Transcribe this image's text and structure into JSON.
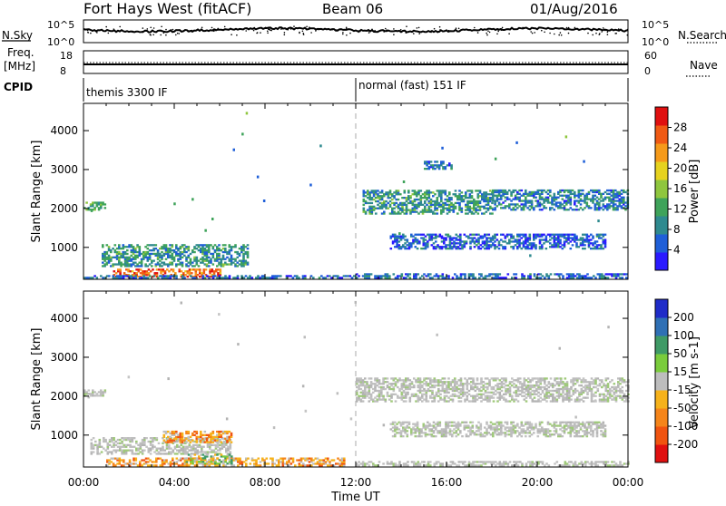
{
  "header": {
    "title": "Fort Hays West (fitACF)",
    "beam": "Beam 06",
    "date": "01/Aug/2016"
  },
  "strips": {
    "nsky_label": "N.Sky",
    "nsky_ticks": [
      "10^5",
      "10^0"
    ],
    "nsearch_label": "N.Search",
    "nsearch_ticks": [
      "10^5",
      "10^0"
    ],
    "freq_label_1": "Freq.",
    "freq_label_2": "[MHz]",
    "freq_ticks": [
      "18",
      "8"
    ],
    "nave_label": "Nave",
    "nave_ticks": [
      "60",
      "0"
    ],
    "cpid_label": "CPID",
    "cpid_segments": [
      {
        "name": "themis 3300 IF",
        "start_hour": 0
      },
      {
        "name": "normal (fast) 151 IF",
        "start_hour": 12
      }
    ]
  },
  "chart_data": [
    {
      "type": "heatmap",
      "panel": "power",
      "ylabel": "Slant Range [km]",
      "ylim": [
        180,
        4700
      ],
      "yticks": [
        1000,
        2000,
        3000,
        4000
      ],
      "xlim": [
        0,
        24
      ],
      "colorbar": {
        "label": "Power [dB]",
        "range": [
          0,
          32
        ],
        "ticks": [
          4,
          8,
          12,
          16,
          20,
          24,
          28
        ],
        "colors": [
          "#2a1aff",
          "#1f5fd8",
          "#2f8a8f",
          "#3fa35a",
          "#8fc63e",
          "#e6d21e",
          "#f59a1a",
          "#f05a14",
          "#e01010"
        ]
      },
      "features": [
        {
          "t0": 0.0,
          "t1": 0.9,
          "r0": 1950,
          "r1": 2150,
          "level": 12
        },
        {
          "t0": 1.3,
          "t1": 6.0,
          "r0": 230,
          "r1": 420,
          "level": 26
        },
        {
          "t0": 0.8,
          "t1": 7.2,
          "r0": 500,
          "r1": 1050,
          "level": 10
        },
        {
          "t0": 0.0,
          "t1": 12.0,
          "r0": 200,
          "r1": 280,
          "level": 6
        },
        {
          "t0": 12.0,
          "t1": 24.0,
          "r0": 200,
          "r1": 300,
          "level": 6
        },
        {
          "t0": 12.3,
          "t1": 18.0,
          "r0": 1850,
          "r1": 2450,
          "level": 10
        },
        {
          "t0": 18.0,
          "t1": 24.0,
          "r0": 1950,
          "r1": 2450,
          "level": 8
        },
        {
          "t0": 13.5,
          "t1": 23.0,
          "r0": 950,
          "r1": 1350,
          "level": 6
        },
        {
          "t0": 15.0,
          "t1": 16.2,
          "r0": 3000,
          "r1": 3200,
          "level": 8
        }
      ]
    },
    {
      "type": "heatmap",
      "panel": "velocity",
      "ylabel": "Slant Range [km]",
      "ylim": [
        180,
        4700
      ],
      "yticks": [
        1000,
        2000,
        3000,
        4000
      ],
      "xlim": [
        0,
        24
      ],
      "xticks": [
        "00:00",
        "04:00",
        "08:00",
        "12:00",
        "16:00",
        "20:00",
        "00:00"
      ],
      "xlabel": "Time UT",
      "colorbar": {
        "label": "Velocity [m s-1]",
        "ticks": [
          "200",
          "100",
          "50",
          "15",
          "-15",
          "-50",
          "-100",
          "-200"
        ],
        "colors": [
          "#1f2cc8",
          "#2f70b5",
          "#3f9a66",
          "#7acc3c",
          "#bdbdbd",
          "#f6b21b",
          "#f5851a",
          "#f05410",
          "#e01010"
        ]
      },
      "features": [
        {
          "t0": 0.0,
          "t1": 0.9,
          "r0": 1950,
          "r1": 2150,
          "kind": "gray"
        },
        {
          "t0": 0.3,
          "t1": 6.5,
          "r0": 500,
          "r1": 950,
          "kind": "gray"
        },
        {
          "t0": 3.5,
          "t1": 6.5,
          "r0": 800,
          "r1": 1100,
          "kind": "orange"
        },
        {
          "t0": 1.0,
          "t1": 11.5,
          "r0": 200,
          "r1": 420,
          "kind": "orange"
        },
        {
          "t0": 4.5,
          "t1": 6.5,
          "r0": 250,
          "r1": 500,
          "kind": "green"
        },
        {
          "t0": 12.0,
          "t1": 24.0,
          "r0": 1850,
          "r1": 2450,
          "kind": "gray"
        },
        {
          "t0": 13.5,
          "t1": 23.0,
          "r0": 950,
          "r1": 1350,
          "kind": "gray"
        },
        {
          "t0": 12.0,
          "t1": 24.0,
          "r0": 200,
          "r1": 320,
          "kind": "gray"
        }
      ]
    }
  ]
}
